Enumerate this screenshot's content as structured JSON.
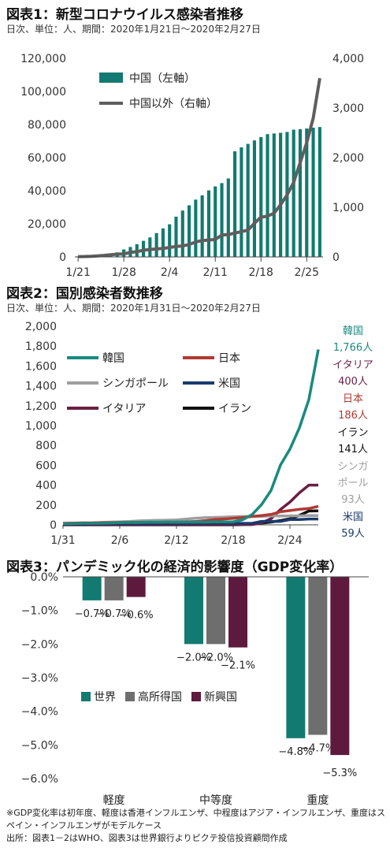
{
  "chart1": {
    "title": "図表1：新型コロナウイルス感染者推移",
    "subtitle": "日次、単位：人、期間：2020年1月21日～2020年2月27日",
    "chart_data": {
      "type": "bar",
      "x": [
        "1/21",
        "1/22",
        "1/23",
        "1/24",
        "1/25",
        "1/26",
        "1/27",
        "1/28",
        "1/29",
        "1/30",
        "1/31",
        "2/1",
        "2/2",
        "2/3",
        "2/4",
        "2/5",
        "2/6",
        "2/7",
        "2/8",
        "2/9",
        "2/10",
        "2/11",
        "2/12",
        "2/13",
        "2/14",
        "2/15",
        "2/16",
        "2/17",
        "2/18",
        "2/19",
        "2/20",
        "2/21",
        "2/22",
        "2/23",
        "2/24",
        "2/25",
        "2/26",
        "2/27"
      ],
      "x_ticks": [
        "1/21",
        "1/28",
        "2/4",
        "2/11",
        "2/18",
        "2/25"
      ],
      "left_axis": {
        "min": 0,
        "max": 120000,
        "ticks": [
          "0",
          "20,000",
          "40,000",
          "60,000",
          "80,000",
          "100,000",
          "120,000"
        ]
      },
      "right_axis": {
        "min": 0,
        "max": 4000,
        "ticks": [
          "0",
          "1,000",
          "2,000",
          "3,000",
          "4,000"
        ]
      },
      "series": [
        {
          "name": "中国（左軸）",
          "type": "bar",
          "axis": "left",
          "color": "#127a70",
          "values": [
            300,
            440,
            570,
            830,
            1290,
            1980,
            2740,
            4500,
            6000,
            7700,
            9700,
            11800,
            14400,
            17200,
            19700,
            24300,
            28000,
            31200,
            34600,
            37200,
            40200,
            42600,
            44600,
            47400,
            63800,
            66200,
            68300,
            70400,
            72400,
            74200,
            74600,
            75000,
            75500,
            76900,
            77200,
            77600,
            78100,
            78500
          ]
        },
        {
          "name": "中国以外（右軸）",
          "type": "line",
          "axis": "right",
          "color": "#5e5e5e",
          "values": [
            6,
            8,
            12,
            20,
            30,
            45,
            55,
            60,
            90,
            105,
            135,
            150,
            160,
            170,
            190,
            210,
            220,
            250,
            300,
            330,
            340,
            350,
            440,
            450,
            480,
            510,
            540,
            680,
            800,
            820,
            880,
            1050,
            1250,
            1500,
            1900,
            2300,
            2800,
            3600
          ]
        }
      ]
    }
  },
  "chart2": {
    "title": "図表2：国別感染者数推移",
    "subtitle": "日次、単位：人、期間：2020年1月31日～2020年2月27日",
    "chart_data": {
      "type": "line",
      "x": [
        "1/31",
        "2/1",
        "2/2",
        "2/3",
        "2/4",
        "2/5",
        "2/6",
        "2/7",
        "2/8",
        "2/9",
        "2/10",
        "2/11",
        "2/12",
        "2/13",
        "2/14",
        "2/15",
        "2/16",
        "2/17",
        "2/18",
        "2/19",
        "2/20",
        "2/21",
        "2/22",
        "2/23",
        "2/24",
        "2/25",
        "2/26",
        "2/27"
      ],
      "x_ticks": [
        "1/31",
        "2/6",
        "2/12",
        "2/18",
        "2/24"
      ],
      "y_axis": {
        "min": 0,
        "max": 2000,
        "ticks": [
          "0",
          "200",
          "400",
          "600",
          "800",
          "1,000",
          "1,200",
          "1,400",
          "1,600",
          "1,800",
          "2,000"
        ]
      },
      "series": [
        {
          "name": "韓国",
          "color": "#1a8a7e",
          "values": [
            11,
            12,
            15,
            15,
            16,
            18,
            23,
            24,
            24,
            27,
            27,
            28,
            28,
            28,
            28,
            28,
            29,
            30,
            31,
            51,
            104,
            204,
            346,
            602,
            763,
            977,
            1261,
            1766
          ]
        },
        {
          "name": "日本",
          "color": "#b03a32",
          "values": [
            15,
            17,
            20,
            20,
            22,
            22,
            25,
            25,
            26,
            26,
            26,
            28,
            28,
            29,
            33,
            41,
            53,
            59,
            66,
            74,
            84,
            94,
            105,
            132,
            144,
            156,
            164,
            186
          ]
        },
        {
          "name": "シンガポール",
          "color": "#9e9e9e",
          "values": [
            16,
            18,
            18,
            18,
            24,
            28,
            30,
            33,
            40,
            43,
            45,
            47,
            50,
            58,
            67,
            72,
            75,
            77,
            81,
            84,
            85,
            86,
            89,
            89,
            90,
            91,
            93,
            93
          ]
        },
        {
          "name": "米国",
          "color": "#1a3a6e",
          "values": [
            6,
            8,
            8,
            11,
            11,
            12,
            12,
            12,
            12,
            12,
            12,
            13,
            13,
            14,
            15,
            15,
            15,
            15,
            15,
            15,
            15,
            35,
            35,
            35,
            53,
            53,
            59,
            59
          ]
        },
        {
          "name": "イタリア",
          "color": "#6a1f45",
          "values": [
            2,
            2,
            2,
            2,
            2,
            2,
            2,
            3,
            3,
            3,
            3,
            3,
            3,
            3,
            3,
            3,
            3,
            3,
            3,
            3,
            3,
            20,
            62,
            155,
            229,
            322,
            400,
            400
          ]
        },
        {
          "name": "イラン",
          "color": "#111111",
          "values": [
            0,
            0,
            0,
            0,
            0,
            0,
            0,
            0,
            0,
            0,
            0,
            0,
            0,
            0,
            0,
            0,
            0,
            0,
            0,
            2,
            5,
            18,
            28,
            43,
            61,
            95,
            139,
            141
          ]
        }
      ],
      "end_labels": [
        {
          "name": "韓国",
          "value": "1,766人",
          "color": "#1a8a7e"
        },
        {
          "name": "イタリア",
          "value": "400人",
          "color": "#6a1f45"
        },
        {
          "name": "日本",
          "value": "186人",
          "color": "#b03a32"
        },
        {
          "name": "イラン",
          "value": "141人",
          "color": "#111111"
        },
        {
          "name": "シンガポール",
          "value": "93人",
          "color": "#9e9e9e"
        },
        {
          "name": "米国",
          "value": "59人",
          "color": "#1a3a6e"
        }
      ]
    }
  },
  "chart3": {
    "title": "図表3：パンデミック化の経済的影響度（GDP変化率）",
    "chart_data": {
      "type": "bar",
      "categories": [
        "軽度",
        "中等度",
        "重度"
      ],
      "y_axis": {
        "min": -6.0,
        "max": 0.0,
        "ticks": [
          "0.0%",
          "−1.0%",
          "−2.0%",
          "−3.0%",
          "−4.0%",
          "−5.0%",
          "−6.0%"
        ]
      },
      "series": [
        {
          "name": "世界",
          "color": "#127a70",
          "values": [
            -0.7,
            -2.0,
            -4.8
          ],
          "labels": [
            "−0.7%",
            "−2.0%",
            "−4.8%"
          ]
        },
        {
          "name": "高所得国",
          "color": "#6e6e6e",
          "values": [
            -0.7,
            -2.0,
            -4.7
          ],
          "labels": [
            "−0.7%",
            "−2.0%",
            "−4.7%"
          ]
        },
        {
          "name": "新興国",
          "color": "#5e1a3c",
          "values": [
            -0.6,
            -2.1,
            -5.3
          ],
          "labels": [
            "−0.6%",
            "−2.1%",
            "−5.3%"
          ]
        }
      ]
    }
  },
  "footnote1": "※GDP変化率は初年度、軽度は香港インフルエンザ、中程度はアジア・インフルエンザ、重度はスペイン・インフルエンザがモデルケース",
  "footnote2": "出所：図表1－2はWHO、図表3は世界銀行よりピクテ投信投資顧問作成"
}
